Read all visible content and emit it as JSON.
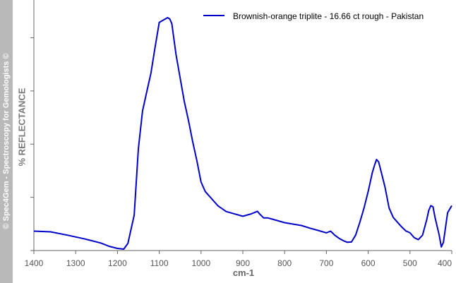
{
  "watermark": "© Spec4Gem - Spectroscopy for Gemologists ©",
  "chart_data": {
    "type": "line",
    "title": "",
    "xlabel": "cm-1",
    "ylabel": "% REFLECTANCE",
    "xlim": [
      1400,
      400
    ],
    "ylim": [
      0,
      100
    ],
    "x_ticks": [
      1400,
      1300,
      1200,
      1100,
      1000,
      900,
      800,
      700,
      600,
      500,
      400
    ],
    "x_tick_labels": [
      "1400",
      "1300",
      "1200",
      "1100",
      "1000",
      "900",
      "800",
      "700",
      "600",
      "500",
      "400"
    ],
    "y_ticks": [
      0,
      22.5,
      45,
      67.5,
      90
    ],
    "grid": false,
    "legend_position": "top-right",
    "series": [
      {
        "name": "Brownish-orange triplite - 16.66 ct rough - Pakistan",
        "color": "#0000cc",
        "x": [
          1400,
          1360,
          1320,
          1280,
          1240,
          1220,
          1200,
          1185,
          1175,
          1160,
          1150,
          1140,
          1130,
          1120,
          1110,
          1100,
          1090,
          1080,
          1075,
          1070,
          1060,
          1050,
          1040,
          1030,
          1020,
          1010,
          1000,
          990,
          980,
          960,
          940,
          920,
          900,
          880,
          865,
          860,
          850,
          840,
          820,
          800,
          780,
          760,
          740,
          720,
          700,
          690,
          680,
          670,
          660,
          650,
          640,
          630,
          620,
          610,
          600,
          590,
          585,
          580,
          575,
          570,
          560,
          550,
          540,
          530,
          520,
          510,
          500,
          490,
          480,
          470,
          460,
          455,
          450,
          445,
          440,
          430,
          425,
          420,
          410,
          400
        ],
        "y": [
          8.2,
          7.9,
          6.5,
          5,
          3.2,
          1.8,
          0.9,
          0.6,
          3,
          15,
          43,
          59,
          67,
          75,
          86,
          96.5,
          97.5,
          98.5,
          98,
          96,
          83,
          73,
          63,
          55,
          46,
          38,
          29,
          25,
          23,
          19,
          16.5,
          15.5,
          14.5,
          15.5,
          16.6,
          15.5,
          13.8,
          13.8,
          12.8,
          11.8,
          11.2,
          10.6,
          9.5,
          8.5,
          7.5,
          8.2,
          6.5,
          5.2,
          4.2,
          3.5,
          3.6,
          6.5,
          12,
          18,
          25,
          33,
          36,
          38.5,
          37.5,
          34,
          27,
          18,
          14,
          12,
          10,
          8.3,
          7.5,
          5.5,
          4.6,
          6.5,
          13,
          17,
          19,
          18.5,
          14,
          6.5,
          1.5,
          3.5,
          16,
          19
        ]
      }
    ]
  }
}
